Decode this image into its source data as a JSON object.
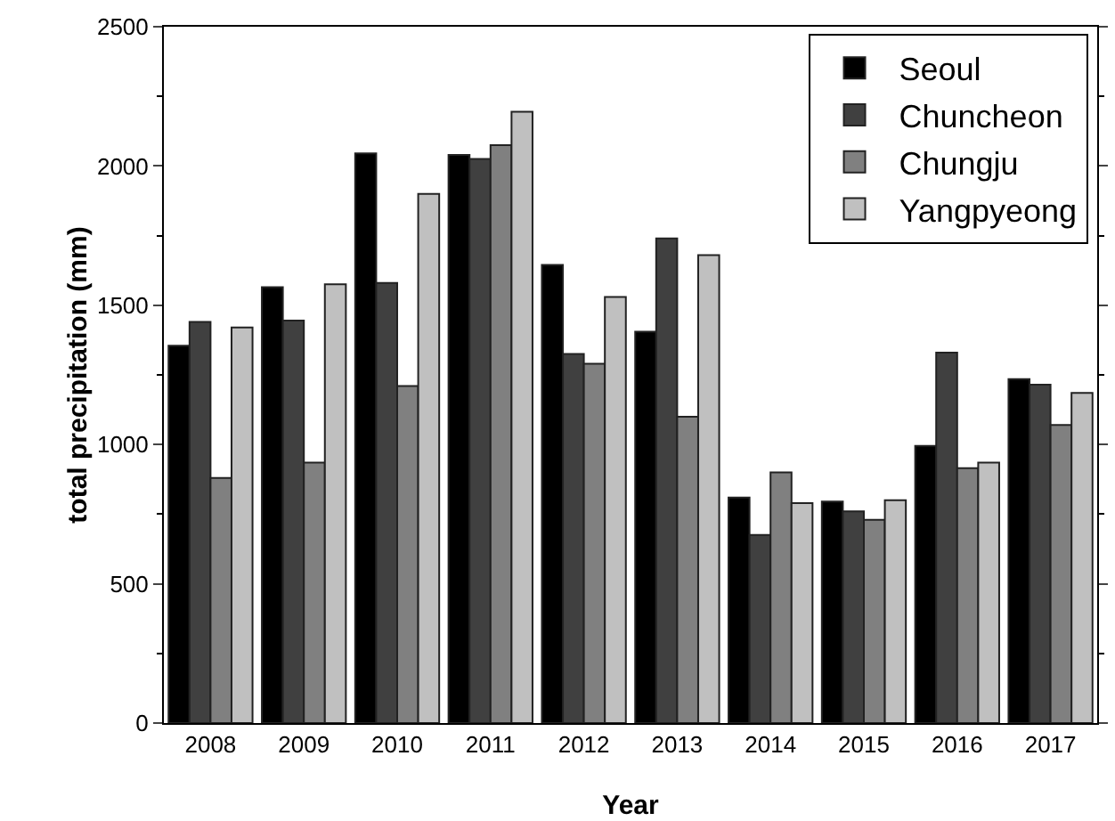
{
  "chart_data": {
    "type": "bar",
    "xlabel": "Year",
    "ylabel": "total precipitation (mm)",
    "categories": [
      "2008",
      "2009",
      "2010",
      "2011",
      "2012",
      "2013",
      "2014",
      "2015",
      "2016",
      "2017"
    ],
    "series": [
      {
        "name": "Seoul",
        "color": "#000000",
        "values": [
          1355,
          1565,
          2045,
          2040,
          1645,
          1405,
          810,
          795,
          995,
          1235
        ]
      },
      {
        "name": "Chuncheon",
        "color": "#404040",
        "values": [
          1440,
          1445,
          1580,
          2025,
          1325,
          1740,
          675,
          760,
          1330,
          1215
        ]
      },
      {
        "name": "Chungju",
        "color": "#808080",
        "values": [
          880,
          935,
          1210,
          2075,
          1290,
          1100,
          900,
          730,
          915,
          1070
        ]
      },
      {
        "name": "Yangpyeong",
        "color": "#c0c0c0",
        "values": [
          1420,
          1575,
          1900,
          2195,
          1530,
          1680,
          790,
          800,
          935,
          1185
        ]
      }
    ],
    "ylim": [
      0,
      2500
    ],
    "yticks": [
      0,
      500,
      1000,
      1500,
      2000,
      2500
    ],
    "grid": false,
    "legend": "top right"
  }
}
